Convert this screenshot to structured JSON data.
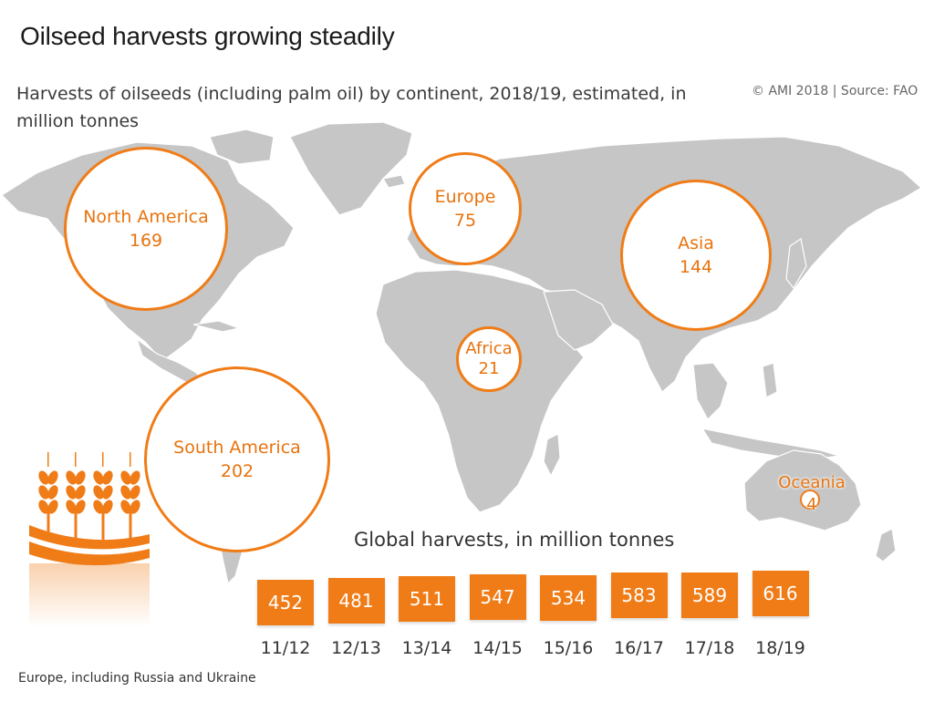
{
  "title": "Oilseed harvests growing steadily",
  "subtitle": "Harvests of oilseeds (including palm oil) by continent, 2018/19, estimated, in million tonnes",
  "source": "© AMI 2018 | Source: FAO",
  "continents": [
    {
      "name": "North America",
      "value": "169"
    },
    {
      "name": "Europe",
      "value": "75"
    },
    {
      "name": "Asia",
      "value": "144"
    },
    {
      "name": "Africa",
      "value": "21"
    },
    {
      "name": "South America",
      "value": "202"
    },
    {
      "name": "Oceania",
      "value": "4"
    }
  ],
  "global": {
    "title": "Global harvests, in million tonnes",
    "years": [
      "11/12",
      "12/13",
      "13/14",
      "14/15",
      "15/16",
      "16/17",
      "17/18",
      "18/19"
    ],
    "values": [
      "452",
      "481",
      "511",
      "547",
      "534",
      "583",
      "589",
      "616"
    ]
  },
  "footnote": "Europe, including Russia and Ukraine",
  "colors": {
    "accent": "#f07c17",
    "land": "#c8c8c8"
  }
}
